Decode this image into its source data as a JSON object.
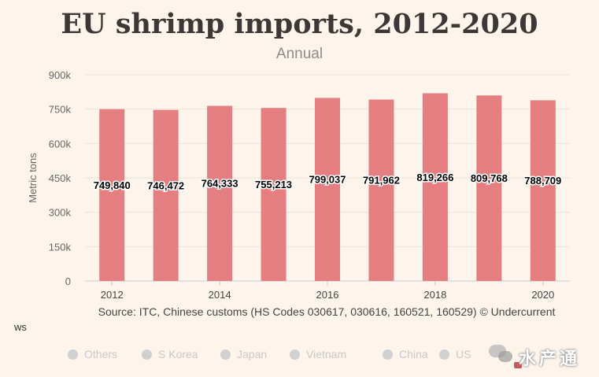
{
  "title": "EU shrimp imports, 2012-2020",
  "subtitle": "Annual",
  "source": "Source: ITC, Chinese customs (HS Codes 030617, 030616, 160521, 160529) © Undercurrent",
  "ws_text": "ws",
  "legend_items": [
    "Others",
    "S Korea",
    "Japan",
    "Vietnam",
    "China",
    "US"
  ],
  "watermark_text": "水产通",
  "colors": {
    "bar": "#e47e80",
    "background": "#fdf4ec",
    "legend_inactive": "#d0d0d0"
  },
  "chart_data": {
    "type": "bar",
    "categories": [
      "2012",
      "2013",
      "2014",
      "2015",
      "2016",
      "2017",
      "2018",
      "2019",
      "2020"
    ],
    "x_tick_labels": [
      "2012",
      "2014",
      "2016",
      "2018",
      "2020"
    ],
    "values": [
      749840,
      746472,
      764333,
      755213,
      799037,
      791962,
      819266,
      809768,
      788709
    ],
    "data_labels": [
      "749,840",
      "746,472",
      "764,333",
      "755,213",
      "799,037",
      "791,962",
      "819,266",
      "809,768",
      "788,709"
    ],
    "ylabel": "Metric tons",
    "ylim": [
      0,
      900000
    ],
    "y_ticks": [
      0,
      150000,
      300000,
      450000,
      600000,
      750000,
      900000
    ],
    "y_tick_labels": [
      "0",
      "150k",
      "300k",
      "450k",
      "600k",
      "750k",
      "900k"
    ],
    "grid": true
  }
}
